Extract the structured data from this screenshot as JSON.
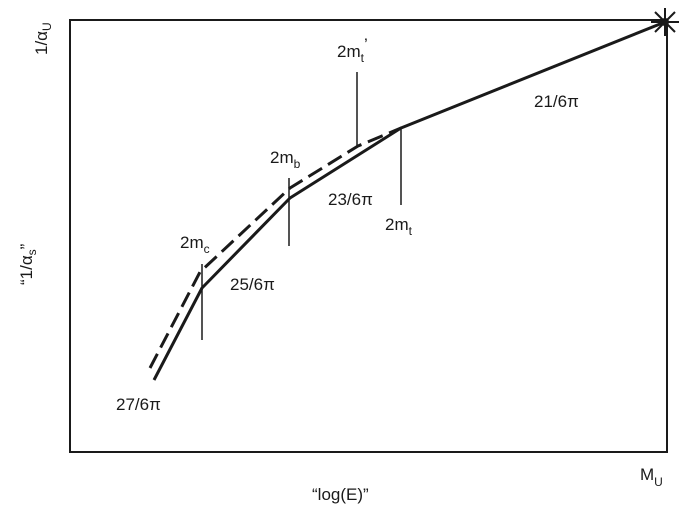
{
  "axes": {
    "x_label": "“log(E)”",
    "y_label": "“1/α",
    "y_label_sub": "s",
    "y_label_close": "”",
    "top_left_label": "1/α",
    "top_left_sub": "U",
    "x_end_label": "M",
    "x_end_sub": "U"
  },
  "thresholds": [
    {
      "base": "2m",
      "sub": "c",
      "prime": ""
    },
    {
      "base": "2m",
      "sub": "b",
      "prime": ""
    },
    {
      "base": "2m",
      "sub": "t",
      "prime": "’"
    },
    {
      "base": "2m",
      "sub": "t",
      "prime": ""
    }
  ],
  "slopes": [
    "27/6π",
    "25/6π",
    "23/6π",
    "21/6π"
  ],
  "unification_marker": "burst-star"
}
